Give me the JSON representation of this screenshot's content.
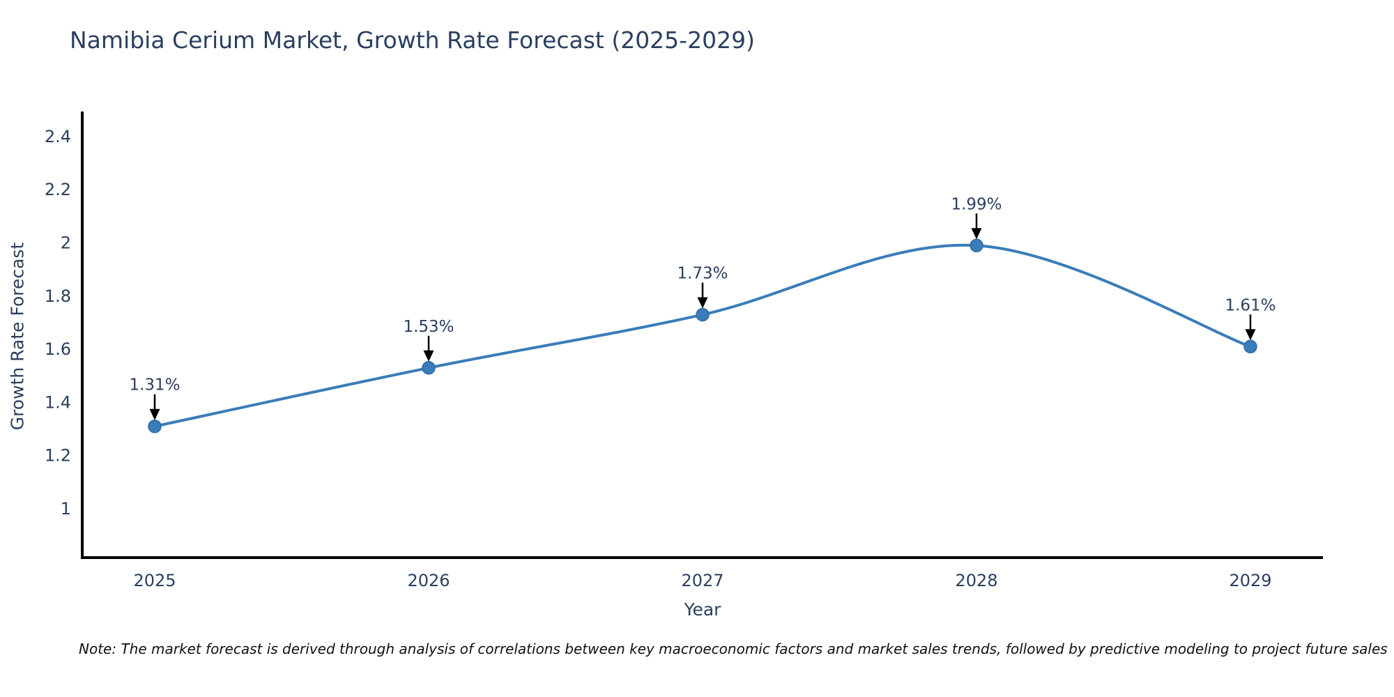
{
  "chart_data": {
    "type": "line",
    "title": "Namibia Cerium Market, Growth Rate Forecast (2025-2029)",
    "xlabel": "Year",
    "ylabel": "Growth Rate Forecast",
    "categories": [
      "2025",
      "2026",
      "2027",
      "2028",
      "2029"
    ],
    "values": [
      1.31,
      1.53,
      1.73,
      1.99,
      1.61
    ],
    "point_labels": [
      "1.31%",
      "1.53%",
      "1.73%",
      "1.99%",
      "1.61%"
    ],
    "yticks": [
      1,
      1.2,
      1.4,
      1.6,
      1.8,
      2,
      2.2,
      2.4
    ],
    "ylim": [
      0.8165,
      2.494
    ],
    "grid": false,
    "legend": "none",
    "line_shape": "spline",
    "colors": {
      "line": "#3a7cb8",
      "marker_fill": "#3a7cb8",
      "marker_edge": "#2e6ba3",
      "annotation_text": "#2a3f5f",
      "annotation_arrow": "#000000",
      "axis_line": "#000000",
      "tick_text": "#2a3f5f",
      "background": "#ffffff"
    }
  },
  "note": {
    "text": "Note: The market forecast is derived through analysis of correlations between key macroeconomic factors and market sales trends, followed by predictive modeling to project future sales"
  }
}
